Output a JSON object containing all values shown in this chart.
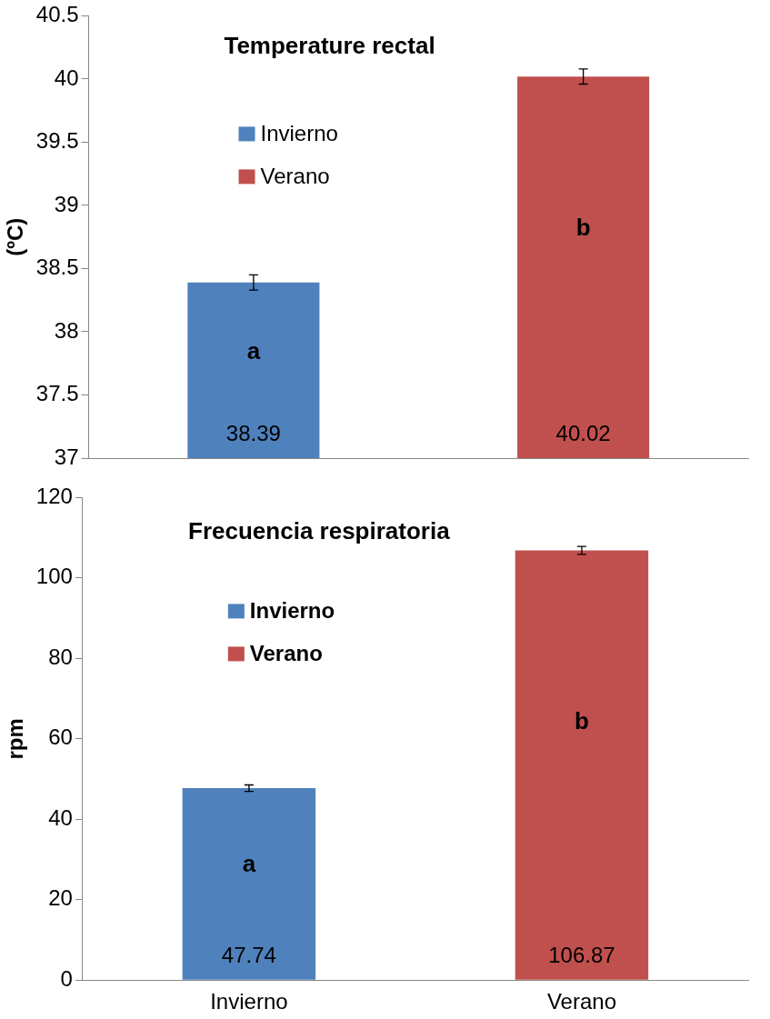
{
  "chart_data": [
    {
      "type": "bar",
      "title": "Temperature rectal",
      "ylabel": "(ºC)",
      "categories": [
        null,
        null
      ],
      "series": [
        {
          "name": "Invierno",
          "color": "#4f81bd",
          "values": [
            38.39,
            null
          ],
          "errors": [
            0.06,
            null
          ]
        },
        {
          "name": "Verano",
          "color": "#c0504d",
          "values": [
            null,
            40.02
          ],
          "errors": [
            null,
            0.06
          ]
        }
      ],
      "ylim": [
        37,
        40.5
      ],
      "yticks": [
        37,
        37.5,
        38,
        38.5,
        39,
        39.5,
        40,
        40.5
      ],
      "data_labels": true,
      "legend": "top left",
      "grid": false,
      "tick_labels": "y",
      "annotations": [
        "a",
        "b"
      ]
    },
    {
      "type": "bar",
      "title": "Frecuencia respiratoria",
      "ylabel": "rpm",
      "categories": [
        "Invierno",
        "Verano"
      ],
      "series": [
        {
          "name": "Invierno",
          "color": "#4f81bd",
          "values": [
            47.74,
            null
          ],
          "errors": [
            0.8,
            null
          ]
        },
        {
          "name": "Verano",
          "color": "#c0504d",
          "values": [
            null,
            106.87
          ],
          "errors": [
            null,
            1
          ]
        }
      ],
      "ylim": [
        0,
        120
      ],
      "yticks": [
        0,
        20,
        40,
        60,
        80,
        100,
        120
      ],
      "data_labels": true,
      "legend": "top left",
      "grid": false,
      "annotations": [
        "a",
        "b"
      ]
    }
  ]
}
